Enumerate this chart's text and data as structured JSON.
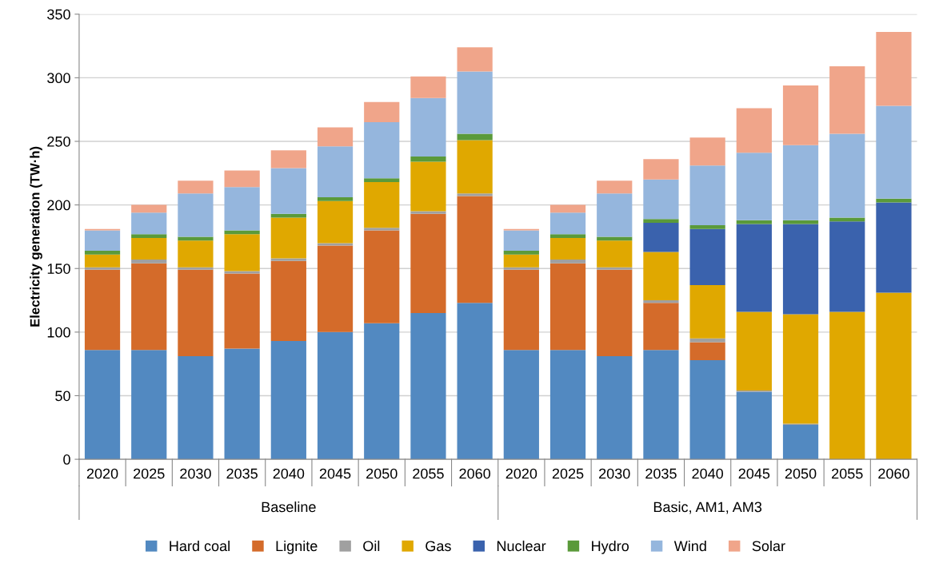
{
  "chart_data": {
    "type": "bar",
    "stacked": true,
    "ylabel": "Electricity generation (TW·h)",
    "categories": [
      "2020",
      "2025",
      "2030",
      "2035",
      "2040",
      "2045",
      "2050",
      "2055",
      "2060",
      "2020",
      "2025",
      "2030",
      "2035",
      "2040",
      "2045",
      "2050",
      "2055",
      "2060"
    ],
    "series": [
      {
        "name": "Hard coal",
        "color": "#5289c1",
        "values": [
          86,
          86,
          81,
          87,
          93,
          100,
          107,
          115,
          123,
          86,
          86,
          81,
          86,
          78,
          53,
          27,
          0,
          0
        ]
      },
      {
        "name": "Lignite",
        "color": "#d46b2a",
        "values": [
          63,
          68,
          68,
          59,
          63,
          68,
          73,
          78,
          84,
          63,
          68,
          68,
          37,
          14,
          0,
          0,
          0,
          0
        ]
      },
      {
        "name": "Oil",
        "color": "#a0a0a0",
        "values": [
          2,
          3,
          2,
          2,
          2,
          2,
          2,
          2,
          2,
          2,
          3,
          2,
          2,
          3,
          1,
          1,
          null,
          null
        ]
      },
      {
        "name": "Gas",
        "color": "#e0a800",
        "values": [
          10,
          17,
          21,
          29,
          32,
          33,
          36,
          39,
          42,
          10,
          17,
          21,
          38,
          42,
          62,
          86,
          116,
          131
        ]
      },
      {
        "name": "Nuclear",
        "color": "#3a62ad",
        "values": [
          0,
          0,
          0,
          0,
          0,
          0,
          0,
          0,
          0,
          0,
          0,
          0,
          23,
          44,
          69,
          71,
          71,
          71
        ]
      },
      {
        "name": "Hydro",
        "color": "#5a9a3a",
        "values": [
          3,
          3,
          3,
          3,
          3,
          3,
          3,
          4,
          5,
          3,
          3,
          3,
          3,
          3,
          3,
          3,
          3,
          3
        ]
      },
      {
        "name": "Wind",
        "color": "#95b6dd",
        "values": [
          16,
          17,
          34,
          34,
          36,
          40,
          44,
          46,
          49,
          16,
          17,
          34,
          31,
          47,
          53,
          59,
          66,
          73
        ]
      },
      {
        "name": "Solar",
        "color": "#f0a58a",
        "values": [
          1,
          6,
          10,
          13,
          14,
          15,
          16,
          17,
          19,
          1,
          6,
          10,
          16,
          22,
          35,
          47,
          53,
          58
        ]
      }
    ],
    "ylim": [
      0,
      350
    ],
    "yticks": [
      0,
      50,
      100,
      150,
      200,
      250,
      300,
      350
    ],
    "grid": "y",
    "legend": "bottom",
    "annotations": [
      "Baseline",
      "Basic, AM1, AM3"
    ]
  }
}
